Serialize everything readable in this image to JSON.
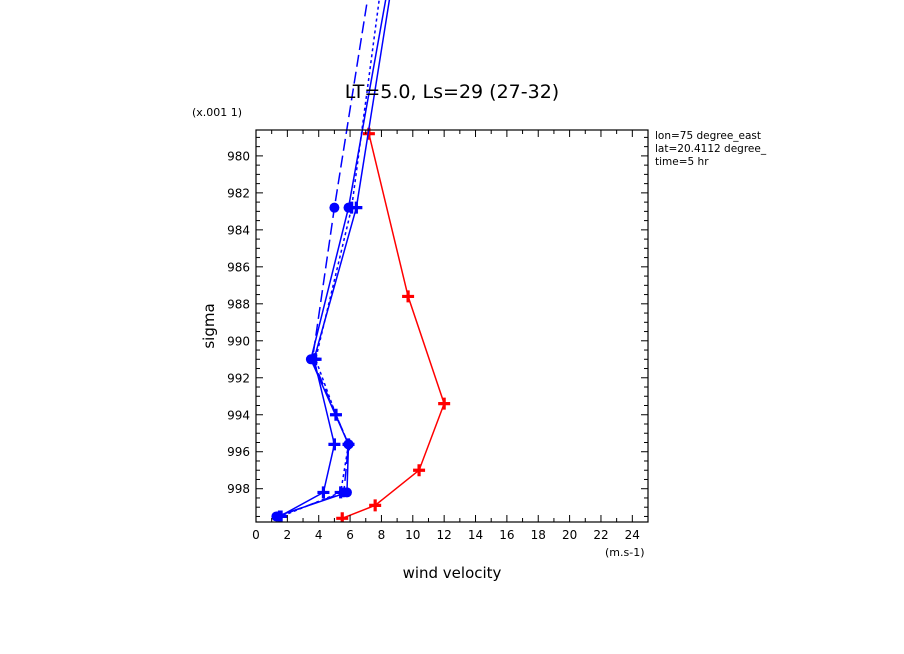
{
  "chart_data": {
    "type": "line",
    "title": "LT=5.0, Ls=29 (27-32)",
    "xlabel": "wind velocity",
    "ylabel": "sigma",
    "x_unit": "(m.s-1)",
    "y_scale_note": "(x.001 1)",
    "xlim": [
      0,
      25
    ],
    "ylim": [
      999.8,
      978.6
    ],
    "x_ticks": [
      "0",
      "2",
      "4",
      "6",
      "8",
      "10",
      "12",
      "14",
      "16",
      "18",
      "20",
      "22",
      "24"
    ],
    "y_ticks": [
      "980",
      "982",
      "984",
      "986",
      "988",
      "990",
      "992",
      "994",
      "996",
      "998"
    ],
    "info_lines": [
      "lon=75 degree_east",
      "lat=20.4112 degree_",
      "time=5 hr"
    ],
    "colors": {
      "red": "#ff0000",
      "blue": "#0000ff"
    },
    "series": [
      {
        "color": "#ff0000",
        "style": "solid",
        "marker": "plus",
        "points": [
          {
            "x": 7.2,
            "y": 978.8
          },
          {
            "x": 9.7,
            "y": 987.6
          },
          {
            "x": 12.0,
            "y": 993.4
          },
          {
            "x": 10.4,
            "y": 997.0
          },
          {
            "x": 7.6,
            "y": 998.9
          },
          {
            "x": 5.5,
            "y": 999.6
          }
        ]
      },
      {
        "color": "#0000ff",
        "style": "solid",
        "marker": "plus",
        "points": [
          {
            "x": 8.8,
            "y": 970.0
          },
          {
            "x": 6.4,
            "y": 982.8
          },
          {
            "x": 3.7,
            "y": 991.0
          },
          {
            "x": 5.0,
            "y": 995.6
          },
          {
            "x": 4.3,
            "y": 998.2
          },
          {
            "x": 1.5,
            "y": 999.5
          }
        ]
      },
      {
        "color": "#0000ff",
        "style": "dashed",
        "marker": "dot",
        "points": [
          {
            "x": 7.4,
            "y": 970.0
          },
          {
            "x": 5.0,
            "y": 982.8
          },
          {
            "x": 3.6,
            "y": 991.0
          },
          {
            "x": 5.9,
            "y": 995.6
          },
          {
            "x": 5.6,
            "y": 998.2
          },
          {
            "x": 1.4,
            "y": 999.5
          }
        ]
      },
      {
        "color": "#0000ff",
        "style": "dotted",
        "marker": "plus",
        "points": [
          {
            "x": 8.1,
            "y": 970.0
          },
          {
            "x": 6.1,
            "y": 982.8
          },
          {
            "x": 3.8,
            "y": 991.0
          },
          {
            "x": 5.1,
            "y": 994.0
          },
          {
            "x": 5.9,
            "y": 995.6
          },
          {
            "x": 5.4,
            "y": 998.2
          },
          {
            "x": 1.6,
            "y": 999.5
          }
        ]
      },
      {
        "color": "#0000ff",
        "style": "solid",
        "marker": "dot",
        "points": [
          {
            "x": 8.6,
            "y": 970.0
          },
          {
            "x": 5.9,
            "y": 982.8
          },
          {
            "x": 3.5,
            "y": 991.0
          },
          {
            "x": 5.9,
            "y": 995.6
          },
          {
            "x": 5.8,
            "y": 998.2
          },
          {
            "x": 1.3,
            "y": 999.5
          }
        ]
      }
    ]
  }
}
